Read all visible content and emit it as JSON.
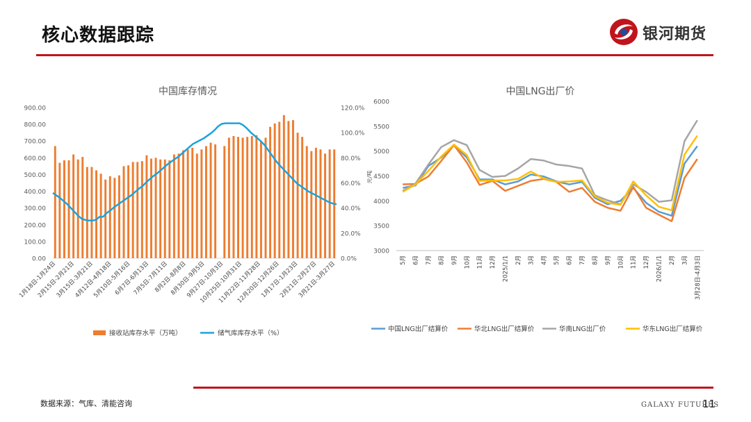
{
  "header": {
    "title": "核心数据跟踪",
    "brand": "银河期货"
  },
  "footer": {
    "source": "数据来源：气库、清能咨询",
    "brand_en": "GALAXY FUTURES",
    "page": "11"
  },
  "colors": {
    "accent": "#c0141c",
    "bar": "#ed7d31",
    "line": "#1aa3dc",
    "china": "#5b9bd5",
    "north": "#ed7d31",
    "south": "#a5a5a5",
    "east": "#ffc000"
  },
  "chart_data": [
    {
      "type": "bar",
      "title": "中国库存情况",
      "ylim": [
        0,
        900
      ],
      "y2lim": [
        0,
        1.2
      ],
      "y_ticks": [
        "0.00",
        "100.00",
        "200.00",
        "300.00",
        "400.00",
        "500.00",
        "600.00",
        "700.00",
        "800.00",
        "900.00"
      ],
      "y2_ticks": [
        "0.0%",
        "20.0%",
        "40.0%",
        "60.0%",
        "80.0%",
        "100.0%",
        "120.0%"
      ],
      "x_tick_labels": [
        "1月18日-1月24日",
        "2月15日-2月21日",
        "3月15日-3月21日",
        "4月12日-4月18日",
        "5月10日-5月16日",
        "6月7日-6月13日",
        "7月5日-7月11日",
        "8月2日-8月8日",
        "8月30日-9月5日",
        "9月27日-10月3日",
        "10月25日-10月31日",
        "11月22日-11月28日",
        "12月20日-12月26日",
        "1月17日-1月23日",
        "2月21日-2月27日",
        "3月21日-3月27日"
      ],
      "series": [
        {
          "name": "接收站库存水平（万吨）",
          "kind": "bar",
          "axis": "left",
          "values": [
            670,
            570,
            585,
            585,
            620,
            590,
            605,
            545,
            545,
            525,
            505,
            470,
            490,
            480,
            495,
            550,
            555,
            575,
            575,
            580,
            615,
            595,
            600,
            590,
            590,
            585,
            620,
            625,
            645,
            650,
            660,
            625,
            650,
            670,
            690,
            680,
            0,
            670,
            720,
            730,
            725,
            720,
            725,
            730,
            735,
            700,
            720,
            785,
            805,
            815,
            855,
            820,
            825,
            750,
            725,
            670,
            640,
            660,
            650,
            625,
            650,
            650
          ]
        },
        {
          "name": "储气库库存水平（%）",
          "kind": "line",
          "axis": "right",
          "values": [
            0.52,
            0.5,
            0.48,
            0.455,
            0.43,
            0.4,
            0.37,
            0.34,
            0.315,
            0.305,
            0.3,
            0.3,
            0.305,
            0.33,
            0.33,
            0.36,
            0.38,
            0.405,
            0.425,
            0.445,
            0.465,
            0.485,
            0.505,
            0.53,
            0.555,
            0.575,
            0.605,
            0.63,
            0.655,
            0.675,
            0.7,
            0.725,
            0.75,
            0.77,
            0.79,
            0.81,
            0.835,
            0.86,
            0.885,
            0.91,
            0.925,
            0.94,
            0.955,
            0.975,
            0.995,
            1.02,
            1.05,
            1.07,
            1.075,
            1.075,
            1.075,
            1.075,
            1.075,
            1.06,
            1.035,
            1.005,
            0.98,
            0.955,
            0.93,
            0.9,
            0.86,
            0.82,
            0.78,
            0.745,
            0.715,
            0.685,
            0.655,
            0.625,
            0.595,
            0.575,
            0.555,
            0.535,
            0.52,
            0.505,
            0.49,
            0.475,
            0.46,
            0.445,
            0.435,
            0.43
          ]
        }
      ],
      "legend": "bottom"
    },
    {
      "type": "line",
      "title": "中国LNG出厂价",
      "ylabel": "元/吨",
      "ylim": [
        3000,
        6000
      ],
      "y_ticks": [
        "3000",
        "3500",
        "4000",
        "4500",
        "5000",
        "5500",
        "6000"
      ],
      "categories": [
        "5月",
        "6月",
        "7月",
        "8月",
        "9月",
        "10月",
        "11月",
        "12月",
        "2025/1/1",
        "2月",
        "3月",
        "4月",
        "5月",
        "6月",
        "7月",
        "8月",
        "9月",
        "10月",
        "11月",
        "12月",
        "2026/1/1",
        "2月",
        "3月",
        "3月28日-4月3日"
      ],
      "series": [
        {
          "name": "中国LNG出厂结算价",
          "values": [
            4260,
            4310,
            4700,
            4870,
            5120,
            4870,
            4430,
            4430,
            4330,
            4390,
            4530,
            4490,
            4390,
            4330,
            4380,
            4060,
            3930,
            4000,
            4260,
            3960,
            3780,
            3700,
            4750,
            5100
          ]
        },
        {
          "name": "华北LNG出厂结算价",
          "values": [
            4330,
            4340,
            4490,
            4800,
            5120,
            4770,
            4320,
            4400,
            4200,
            4300,
            4400,
            4440,
            4380,
            4180,
            4260,
            3980,
            3860,
            3800,
            4280,
            3860,
            3720,
            3590,
            4460,
            4840
          ]
        },
        {
          "name": "华南LNG出厂价",
          "values": [
            4200,
            4350,
            4730,
            5080,
            5220,
            5120,
            4620,
            4480,
            4500,
            4650,
            4840,
            4810,
            4730,
            4700,
            4650,
            4110,
            4010,
            3930,
            4330,
            4180,
            3980,
            4010,
            5200,
            5620
          ]
        },
        {
          "name": "华东LNG出厂结算价",
          "values": [
            4180,
            4330,
            4600,
            4890,
            5130,
            4920,
            4400,
            4410,
            4410,
            4440,
            4590,
            4450,
            4380,
            4390,
            4410,
            4090,
            3960,
            3920,
            4390,
            4110,
            3880,
            3810,
            4930,
            5310
          ]
        }
      ],
      "legend": "bottom"
    }
  ]
}
